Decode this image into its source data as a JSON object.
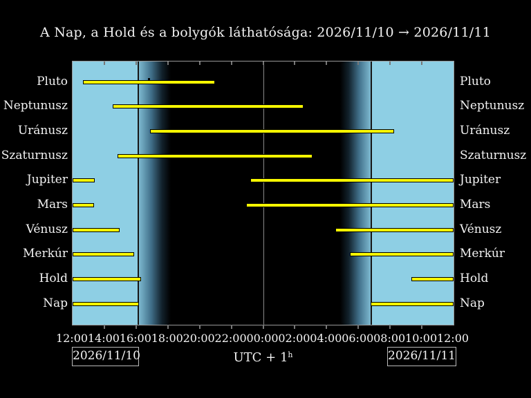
{
  "title": "A Nap, a Hold és a bolygók láthatósága: 2026/11/10 → 2026/11/11",
  "date_boxes": {
    "left": "2026/11/10",
    "right": "2026/11/11"
  },
  "utc": {
    "label": "UTC + 1",
    "superscript": "h"
  },
  "colors": {
    "background": "#000000",
    "day": "#8ecfe4",
    "bar_fill": "#f8f800",
    "bar_border": "#000000",
    "frame": "#999999",
    "grid": "#8a8a8a",
    "tick": "#777777",
    "text": "#f2f2f2",
    "day_edge": "#161616",
    "twilight_mid": "#41708a"
  },
  "chart_data": {
    "type": "bar",
    "subtype": "horizontal-visibility-gantt",
    "title": "A Nap, a Hold és a bolygók láthatósága: 2026/11/10 → 2026/11/11",
    "timezone": "UTC + 1h",
    "x_axis": {
      "start_label": "12:00",
      "end_label": "12:00",
      "span_hours": 24,
      "tick_interval_hours": 2,
      "tick_labels": [
        "12:00",
        "14:00",
        "16:00",
        "18:00",
        "20:00",
        "22:00",
        "00:00",
        "02:00",
        "04:00",
        "06:00",
        "08:00",
        "10:00",
        "12:00"
      ]
    },
    "midnight_gridline_hour": 12,
    "day_spans": [
      {
        "from": 0,
        "to": 4.17,
        "from_time": "12:00",
        "to_time": "16:10",
        "edge": "right"
      },
      {
        "from": 18.79,
        "to": 24,
        "from_time": "06:47",
        "to_time": "12:00",
        "edge": "left"
      }
    ],
    "twilight_spans": [
      {
        "from": 4.17,
        "to": 6.18,
        "direction": "to-night",
        "from_time": "16:10",
        "to_time": "18:11"
      },
      {
        "from": 16.86,
        "to": 18.79,
        "direction": "to-day",
        "from_time": "04:52",
        "to_time": "06:47"
      }
    ],
    "rows": [
      {
        "label": "Pluto",
        "bars": [
          {
            "from": 0.67,
            "to": 8.96,
            "from_time": "12:40",
            "to_time": "20:58"
          }
        ],
        "transit_marker_hour": 4.82,
        "transit_time": "16:49"
      },
      {
        "label": "Neptunusz",
        "bars": [
          {
            "from": 2.54,
            "to": 14.56,
            "from_time": "14:32",
            "to_time": "02:34"
          }
        ]
      },
      {
        "label": "Uránusz",
        "bars": [
          {
            "from": 4.88,
            "to": 20.25,
            "from_time": "16:53",
            "to_time": "08:15"
          }
        ]
      },
      {
        "label": "Szaturnusz",
        "bars": [
          {
            "from": 2.84,
            "to": 15.12,
            "from_time": "14:50",
            "to_time": "03:07"
          }
        ]
      },
      {
        "label": "Jupiter",
        "bars": [
          {
            "from": 0,
            "to": 1.41,
            "from_time": "12:00",
            "to_time": "13:25"
          },
          {
            "from": 11.2,
            "to": 24,
            "from_time": "23:12",
            "to_time": "12:00"
          }
        ]
      },
      {
        "label": "Mars",
        "bars": [
          {
            "from": 0,
            "to": 1.35,
            "from_time": "12:00",
            "to_time": "13:21"
          },
          {
            "from": 10.94,
            "to": 24,
            "from_time": "22:56",
            "to_time": "12:00"
          }
        ]
      },
      {
        "label": "Vénusz",
        "bars": [
          {
            "from": 0,
            "to": 2.97,
            "from_time": "12:00",
            "to_time": "14:58"
          },
          {
            "from": 16.56,
            "to": 24,
            "from_time": "04:33",
            "to_time": "12:00"
          }
        ]
      },
      {
        "label": "Merkúr",
        "bars": [
          {
            "from": 0,
            "to": 3.88,
            "from_time": "12:00",
            "to_time": "15:53"
          },
          {
            "from": 17.47,
            "to": 24,
            "from_time": "05:28",
            "to_time": "12:00"
          }
        ]
      },
      {
        "label": "Hold",
        "bars": [
          {
            "from": 0,
            "to": 4.32,
            "from_time": "12:00",
            "to_time": "16:19"
          },
          {
            "from": 21.35,
            "to": 24,
            "from_time": "09:21",
            "to_time": "12:00"
          }
        ]
      },
      {
        "label": "Nap",
        "bars": [
          {
            "from": 0,
            "to": 4.17,
            "from_time": "12:00",
            "to_time": "16:10"
          },
          {
            "from": 18.79,
            "to": 24,
            "from_time": "06:47",
            "to_time": "12:00"
          }
        ]
      }
    ]
  }
}
